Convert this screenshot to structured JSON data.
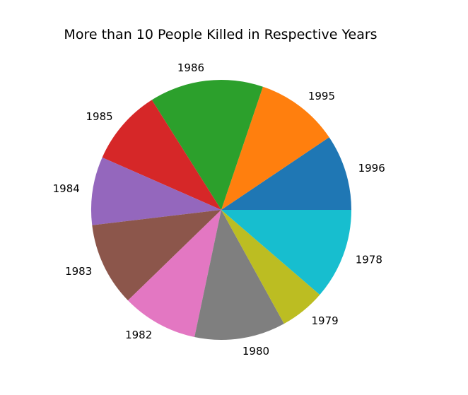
{
  "chart_data": {
    "type": "pie",
    "title": "More than 10 People Killed in Respective Years",
    "start_angle_deg": 0,
    "direction": "counterclockwise",
    "slices": [
      {
        "label": "1996",
        "value": 10,
        "color": "#1f77b4"
      },
      {
        "label": "1995",
        "value": 11,
        "color": "#ff7f0e"
      },
      {
        "label": "1986",
        "value": 15,
        "color": "#2ca02c"
      },
      {
        "label": "1985",
        "value": 10,
        "color": "#d62728"
      },
      {
        "label": "1984",
        "value": 9,
        "color": "#9467bd"
      },
      {
        "label": "1983",
        "value": 11,
        "color": "#8c564b"
      },
      {
        "label": "1982",
        "value": 10,
        "color": "#e377c2"
      },
      {
        "label": "1980",
        "value": 12,
        "color": "#7f7f7f"
      },
      {
        "label": "1979",
        "value": 6,
        "color": "#bcbd22"
      },
      {
        "label": "1978",
        "value": 12,
        "color": "#17becf"
      }
    ]
  }
}
